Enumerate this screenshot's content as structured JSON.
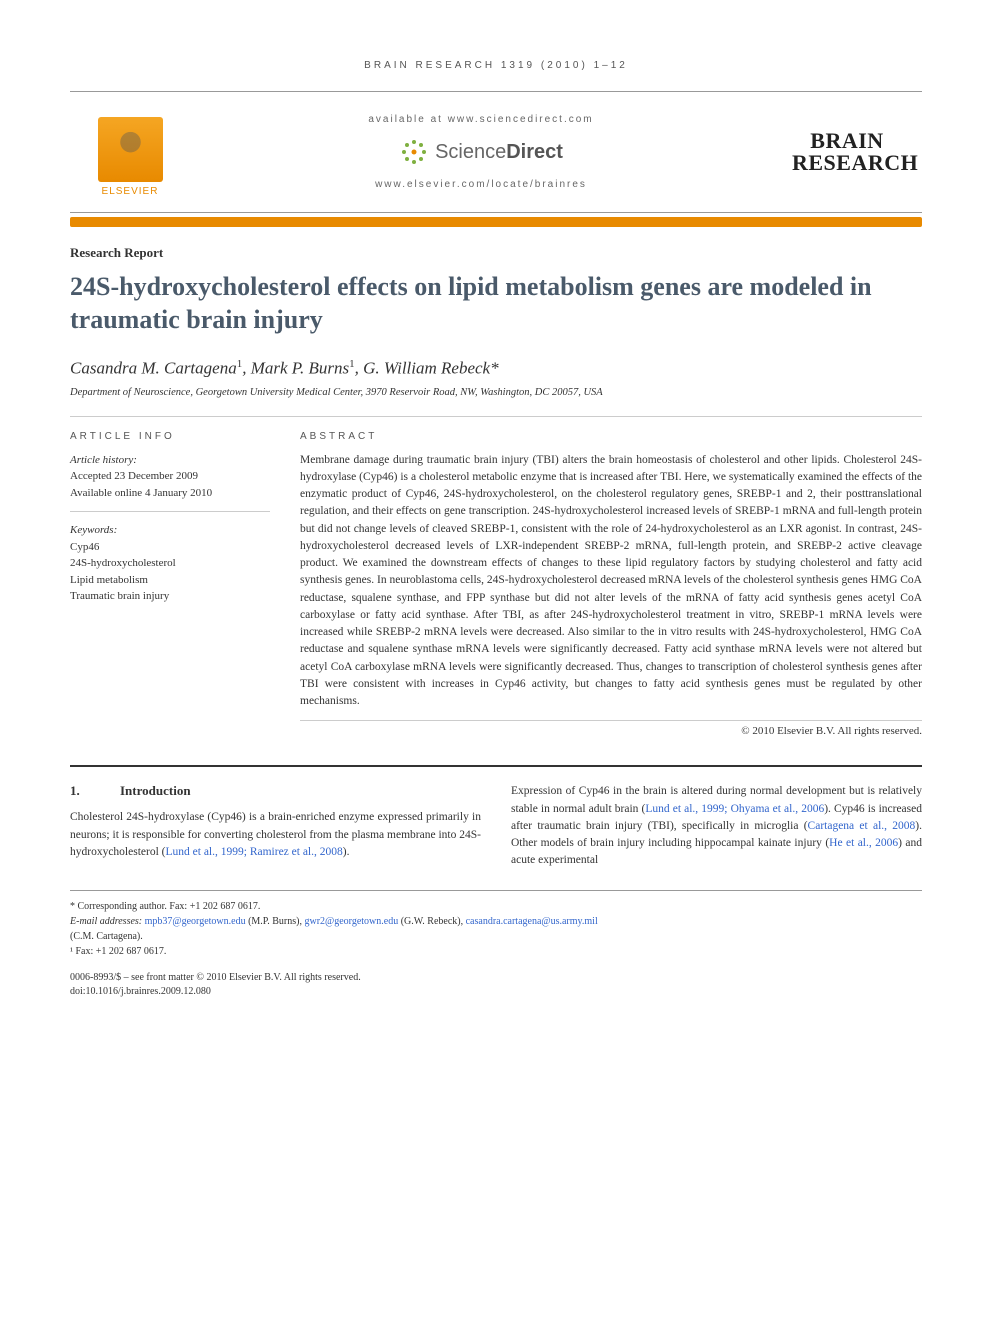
{
  "running_head": "BRAIN RESEARCH 1319 (2010) 1–12",
  "header": {
    "available": "available at www.sciencedirect.com",
    "scidirect_prefix": "Science",
    "scidirect_suffix": "Direct",
    "journal_url": "www.elsevier.com/locate/brainres",
    "elsevier": "ELSEVIER",
    "journal_line1": "BRAIN",
    "journal_line2": "RESEARCH"
  },
  "article": {
    "type": "Research Report",
    "title": "24S-hydroxycholesterol effects on lipid metabolism genes are modeled in traumatic brain injury",
    "authors_html": "Casandra M. Cartagena<sup>1</sup>, Mark P. Burns<sup>1</sup>, G. William Rebeck*",
    "affiliation": "Department of Neuroscience, Georgetown University Medical Center, 3970 Reservoir Road, NW, Washington, DC 20057, USA"
  },
  "info": {
    "heading": "ARTICLE INFO",
    "history_head": "Article history:",
    "history_1": "Accepted 23 December 2009",
    "history_2": "Available online 4 January 2010",
    "keywords_head": "Keywords:",
    "keywords": [
      "Cyp46",
      "24S-hydroxycholesterol",
      "Lipid metabolism",
      "Traumatic brain injury"
    ]
  },
  "abstract": {
    "heading": "ABSTRACT",
    "text": "Membrane damage during traumatic brain injury (TBI) alters the brain homeostasis of cholesterol and other lipids. Cholesterol 24S-hydroxylase (Cyp46) is a cholesterol metabolic enzyme that is increased after TBI. Here, we systematically examined the effects of the enzymatic product of Cyp46, 24S-hydroxycholesterol, on the cholesterol regulatory genes, SREBP-1 and 2, their posttranslational regulation, and their effects on gene transcription. 24S-hydroxycholesterol increased levels of SREBP-1 mRNA and full-length protein but did not change levels of cleaved SREBP-1, consistent with the role of 24-hydroxycholesterol as an LXR agonist. In contrast, 24S-hydroxycholesterol decreased levels of LXR-independent SREBP-2 mRNA, full-length protein, and SREBP-2 active cleavage product. We examined the downstream effects of changes to these lipid regulatory factors by studying cholesterol and fatty acid synthesis genes. In neuroblastoma cells, 24S-hydroxycholesterol decreased mRNA levels of the cholesterol synthesis genes HMG CoA reductase, squalene synthase, and FPP synthase but did not alter levels of the mRNA of fatty acid synthesis genes acetyl CoA carboxylase or fatty acid synthase. After TBI, as after 24S-hydroxycholesterol treatment in vitro, SREBP-1 mRNA levels were increased while SREBP-2 mRNA levels were decreased. Also similar to the in vitro results with 24S-hydroxycholesterol, HMG CoA reductase and squalene synthase mRNA levels were significantly decreased. Fatty acid synthase mRNA levels were not altered but acetyl CoA carboxylase mRNA levels were significantly decreased. Thus, changes to transcription of cholesterol synthesis genes after TBI were consistent with increases in Cyp46 activity, but changes to fatty acid synthesis genes must be regulated by other mechanisms.",
    "copyright": "© 2010 Elsevier B.V. All rights reserved."
  },
  "body": {
    "section_num": "1.",
    "section_title": "Introduction",
    "col1": "Cholesterol 24S-hydroxylase (Cyp46) is a brain-enriched enzyme expressed primarily in neurons; it is responsible for converting cholesterol from the plasma membrane into 24S-hydroxycholesterol (",
    "col1_link": "Lund et al., 1999; Ramirez et al., 2008",
    "col1_end": ").",
    "col2_a": "Expression of Cyp46 in the brain is altered during normal development but is relatively stable in normal adult brain (",
    "col2_link1": "Lund et al., 1999; Ohyama et al., 2006",
    "col2_b": "). Cyp46 is increased after traumatic brain injury (TBI), specifically in microglia (",
    "col2_link2": "Cartagena et al., 2008",
    "col2_c": "). Other models of brain injury including hippocampal kainate injury (",
    "col2_link3": "He et al., 2006",
    "col2_d": ") and acute experimental"
  },
  "footnotes": {
    "corr": "* Corresponding author. Fax: +1 202 687 0617.",
    "email_label": "E-mail addresses: ",
    "email1": "mpb37@georgetown.edu",
    "email1_who": " (M.P. Burns), ",
    "email2": "gwr2@georgetown.edu",
    "email2_who": " (G.W. Rebeck), ",
    "email3": "casandra.cartagena@us.army.mil",
    "email3_who": "(C.M. Cartagena).",
    "fax": "¹ Fax: +1 202 687 0617."
  },
  "bottom": {
    "line1": "0006-8993/$ – see front matter © 2010 Elsevier B.V. All rights reserved.",
    "line2": "doi:10.1016/j.brainres.2009.12.080"
  },
  "colors": {
    "orange": "#e88a00",
    "title_color": "#4a5a6a",
    "link": "#3366cc"
  }
}
